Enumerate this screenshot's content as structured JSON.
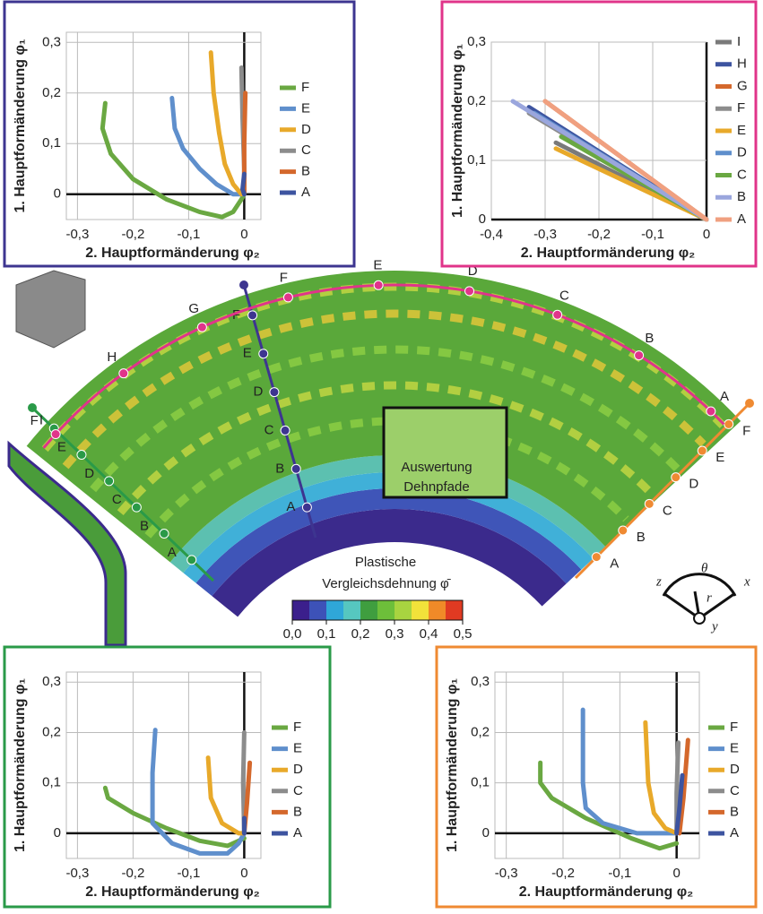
{
  "chart_data": [
    {
      "type": "line",
      "frame_color": "#3d3590",
      "xlabel": "2. Hauptformänderung φ₂",
      "ylabel": "1. Hauptformänderung φ₁",
      "xlim": [
        -0.32,
        0.03
      ],
      "ylim": [
        -0.05,
        0.32
      ],
      "xticks": [
        {
          "value": -0.3,
          "label": "-0,3"
        },
        {
          "value": -0.2,
          "label": "-0,2"
        },
        {
          "value": -0.1,
          "label": "-0,1"
        },
        0
      ],
      "yticks": [
        0,
        {
          "value": 0.1,
          "label": "0,1"
        },
        {
          "value": 0.2,
          "label": "0,2"
        },
        {
          "value": 0.3,
          "label": "0,3"
        }
      ],
      "grid": true,
      "series": [
        {
          "name": "F",
          "color": "#6aa842",
          "x": [
            -0.25,
            -0.255,
            -0.24,
            -0.2,
            -0.14,
            -0.08,
            -0.04,
            -0.02,
            -0.005,
            0
          ],
          "values": [
            0.18,
            0.13,
            0.08,
            0.03,
            -0.01,
            -0.035,
            -0.045,
            -0.035,
            -0.01,
            0
          ]
        },
        {
          "name": "E",
          "color": "#5f8fcc",
          "x": [
            -0.13,
            -0.125,
            -0.11,
            -0.08,
            -0.05,
            -0.02,
            -0.005,
            0
          ],
          "values": [
            0.19,
            0.13,
            0.09,
            0.05,
            0.02,
            0,
            0,
            0
          ]
        },
        {
          "name": "D",
          "color": "#e8a92a",
          "x": [
            -0.06,
            -0.055,
            -0.045,
            -0.035,
            -0.02,
            -0.005
          ],
          "values": [
            0.28,
            0.2,
            0.12,
            0.06,
            0.02,
            0
          ]
        },
        {
          "name": "C",
          "color": "#8c8c8c",
          "x": [
            -0.005,
            -0.003,
            0,
            0
          ],
          "values": [
            0.25,
            0.15,
            0.05,
            0
          ]
        },
        {
          "name": "B",
          "color": "#d4682c",
          "x": [
            0.002,
            0,
            0
          ],
          "values": [
            0.2,
            0.1,
            0
          ]
        },
        {
          "name": "A",
          "color": "#3d54a0",
          "x": [
            0,
            -0.003,
            0
          ],
          "values": [
            0.04,
            0.01,
            0
          ]
        }
      ]
    },
    {
      "type": "line",
      "frame_color": "#e0348a",
      "xlabel": "2. Hauptformänderung φ₂",
      "ylabel": "1. Hauptformänderung φ₁",
      "xlim": [
        -0.4,
        0
      ],
      "ylim": [
        0,
        0.3
      ],
      "xticks": [
        {
          "value": -0.4,
          "label": "-0,4"
        },
        {
          "value": -0.3,
          "label": "-0,3"
        },
        {
          "value": -0.2,
          "label": "-0,2"
        },
        {
          "value": -0.1,
          "label": "-0,1"
        },
        0
      ],
      "yticks": [
        0,
        {
          "value": 0.1,
          "label": "0,1"
        },
        {
          "value": 0.2,
          "label": "0,2"
        },
        {
          "value": 0.3,
          "label": "0,3"
        }
      ],
      "grid": true,
      "series": [
        {
          "name": "I",
          "color": "#7a7a7a",
          "x": [
            -0.28,
            0
          ],
          "values": [
            0.13,
            0
          ]
        },
        {
          "name": "H",
          "color": "#3d54a0",
          "x": [
            -0.33,
            0
          ],
          "values": [
            0.19,
            0
          ]
        },
        {
          "name": "G",
          "color": "#d4682c",
          "x": [
            -0.3,
            0
          ],
          "values": [
            0.2,
            0
          ]
        },
        {
          "name": "F",
          "color": "#8c8c8c",
          "x": [
            -0.33,
            0
          ],
          "values": [
            0.18,
            0
          ]
        },
        {
          "name": "E",
          "color": "#e8a92a",
          "x": [
            -0.28,
            0
          ],
          "values": [
            0.12,
            0
          ]
        },
        {
          "name": "D",
          "color": "#5f8fcc",
          "x": [
            -0.32,
            0
          ],
          "values": [
            0.18,
            0
          ]
        },
        {
          "name": "C",
          "color": "#6aa842",
          "x": [
            -0.27,
            0
          ],
          "values": [
            0.14,
            0
          ]
        },
        {
          "name": "B",
          "color": "#9aa6dd",
          "x": [
            -0.36,
            0
          ],
          "values": [
            0.2,
            0
          ]
        },
        {
          "name": "A",
          "color": "#f0a080",
          "x": [
            -0.3,
            0
          ],
          "values": [
            0.2,
            0
          ]
        }
      ]
    },
    {
      "type": "line",
      "frame_color": "#2a9a48",
      "xlabel": "2. Hauptformänderung φ₂",
      "ylabel": "1. Hauptformänderung φ₁",
      "xlim": [
        -0.32,
        0.03
      ],
      "ylim": [
        -0.05,
        0.32
      ],
      "xticks": [
        {
          "value": -0.3,
          "label": "-0,3"
        },
        {
          "value": -0.2,
          "label": "-0,2"
        },
        {
          "value": -0.1,
          "label": "-0,1"
        },
        0
      ],
      "yticks": [
        0,
        {
          "value": 0.1,
          "label": "0,1"
        },
        {
          "value": 0.2,
          "label": "0,2"
        },
        {
          "value": 0.3,
          "label": "0,3"
        }
      ],
      "grid": true,
      "series": [
        {
          "name": "F",
          "color": "#6aa842",
          "x": [
            -0.25,
            -0.245,
            -0.2,
            -0.14,
            -0.08,
            -0.03,
            0
          ],
          "values": [
            0.09,
            0.07,
            0.04,
            0.01,
            -0.015,
            -0.025,
            -0.01
          ]
        },
        {
          "name": "E",
          "color": "#5f8fcc",
          "x": [
            -0.16,
            -0.165,
            -0.165,
            -0.13,
            -0.08,
            -0.03,
            -0.01,
            0
          ],
          "values": [
            0.205,
            0.12,
            0.02,
            -0.02,
            -0.04,
            -0.04,
            -0.02,
            0
          ]
        },
        {
          "name": "D",
          "color": "#e8a92a",
          "x": [
            -0.065,
            -0.06,
            -0.04,
            -0.01,
            0
          ],
          "values": [
            0.15,
            0.07,
            0.02,
            0,
            0
          ]
        },
        {
          "name": "C",
          "color": "#8c8c8c",
          "x": [
            0,
            -0.002,
            0
          ],
          "values": [
            0.2,
            0.1,
            0
          ]
        },
        {
          "name": "B",
          "color": "#d4682c",
          "x": [
            0.01,
            0.005,
            0
          ],
          "values": [
            0.14,
            0.06,
            0
          ]
        },
        {
          "name": "A",
          "color": "#3d54a0",
          "x": [
            0,
            0
          ],
          "values": [
            0.03,
            0
          ]
        }
      ]
    },
    {
      "type": "line",
      "frame_color": "#ef8a32",
      "xlabel": "2. Hauptformänderung φ₂",
      "ylabel": "1. Hauptformänderung φ₁",
      "xlim": [
        -0.32,
        0.04
      ],
      "ylim": [
        -0.05,
        0.32
      ],
      "xticks": [
        {
          "value": -0.3,
          "label": "-0,3"
        },
        {
          "value": -0.2,
          "label": "-0,2"
        },
        {
          "value": -0.1,
          "label": "-0,1"
        },
        0
      ],
      "yticks": [
        0,
        {
          "value": 0.1,
          "label": "0,1"
        },
        {
          "value": 0.2,
          "label": "0,2"
        },
        {
          "value": 0.3,
          "label": "0,3"
        }
      ],
      "grid": true,
      "series": [
        {
          "name": "F",
          "color": "#6aa842",
          "x": [
            -0.24,
            -0.24,
            -0.22,
            -0.16,
            -0.08,
            -0.03,
            0
          ],
          "values": [
            0.14,
            0.1,
            0.07,
            0.03,
            -0.01,
            -0.03,
            -0.02
          ]
        },
        {
          "name": "E",
          "color": "#5f8fcc",
          "x": [
            -0.165,
            -0.165,
            -0.16,
            -0.13,
            -0.07,
            -0.02,
            0
          ],
          "values": [
            0.245,
            0.1,
            0.05,
            0.02,
            0,
            0,
            0
          ]
        },
        {
          "name": "D",
          "color": "#e8a92a",
          "x": [
            -0.055,
            -0.05,
            -0.04,
            -0.02,
            0
          ],
          "values": [
            0.22,
            0.1,
            0.04,
            0.01,
            0
          ]
        },
        {
          "name": "C",
          "color": "#8c8c8c",
          "x": [
            0.003,
            0,
            0
          ],
          "values": [
            0.18,
            0.08,
            0
          ]
        },
        {
          "name": "B",
          "color": "#d4682c",
          "x": [
            0.02,
            0.012,
            0.005
          ],
          "values": [
            0.185,
            0.07,
            0
          ]
        },
        {
          "name": "A",
          "color": "#3d54a0",
          "x": [
            0.01,
            0.005,
            0
          ],
          "values": [
            0.115,
            0.05,
            0
          ]
        }
      ]
    }
  ],
  "figure": {
    "colorbar": {
      "title": [
        "Plastische",
        "Vergleichsdehnung φ̄"
      ],
      "lim": [
        0,
        0.5
      ],
      "colors": [
        "#3b1f8c",
        "#3d52b8",
        "#2fa7d8",
        "#56c7c0",
        "#3f9e3f",
        "#6dbf3a",
        "#a8d440",
        "#f2e23a",
        "#f08a28",
        "#e03a22"
      ],
      "ticks": [
        {
          "value": 0,
          "label": "0,0"
        },
        {
          "value": 0.1,
          "label": "0,1"
        },
        {
          "value": 0.2,
          "label": "0,2"
        },
        {
          "value": 0.3,
          "label": "0,3"
        },
        {
          "value": 0.4,
          "label": "0,4"
        },
        {
          "value": 0.5,
          "label": "0,5"
        }
      ]
    },
    "inset": [
      "Auswertung",
      "Dehnpfade"
    ],
    "paths": {
      "pink": [
        "I",
        "H",
        "G",
        "F",
        "E",
        "D",
        "C",
        "B",
        "A"
      ],
      "purple": [
        "A",
        "B",
        "C",
        "D",
        "E",
        "F"
      ],
      "green": [
        "A",
        "B",
        "C",
        "D",
        "E",
        "F"
      ],
      "orange": [
        "A",
        "B",
        "C",
        "D",
        "E",
        "F"
      ]
    },
    "coordinates": [
      "z",
      "θ",
      "x",
      "r",
      "y"
    ]
  }
}
